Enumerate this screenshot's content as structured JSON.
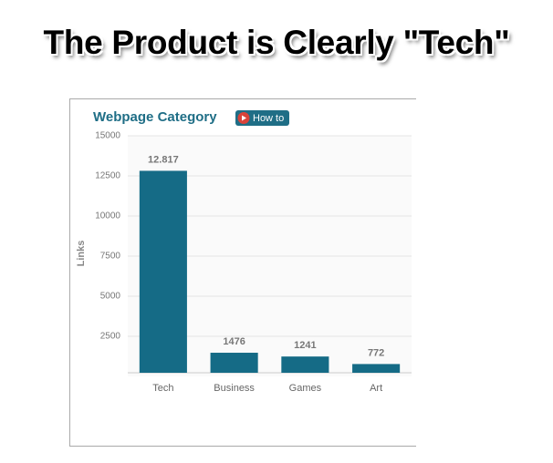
{
  "heading": "The Product is Clearly \"Tech\"",
  "button": "How to",
  "chart_data": {
    "type": "bar",
    "title": "Webpage Category",
    "y_label": "Links",
    "categories": [
      "Tech",
      "Business",
      "Games",
      "Art"
    ],
    "values": [
      12817,
      1476,
      1241,
      772
    ],
    "value_labels": [
      "12.817",
      "1476",
      "1241",
      "772"
    ],
    "color": "#156b86",
    "ylim": [
      0,
      15000
    ],
    "yticks": [
      2500,
      5000,
      7500,
      10000,
      12500,
      15000
    ],
    "grid": true
  }
}
